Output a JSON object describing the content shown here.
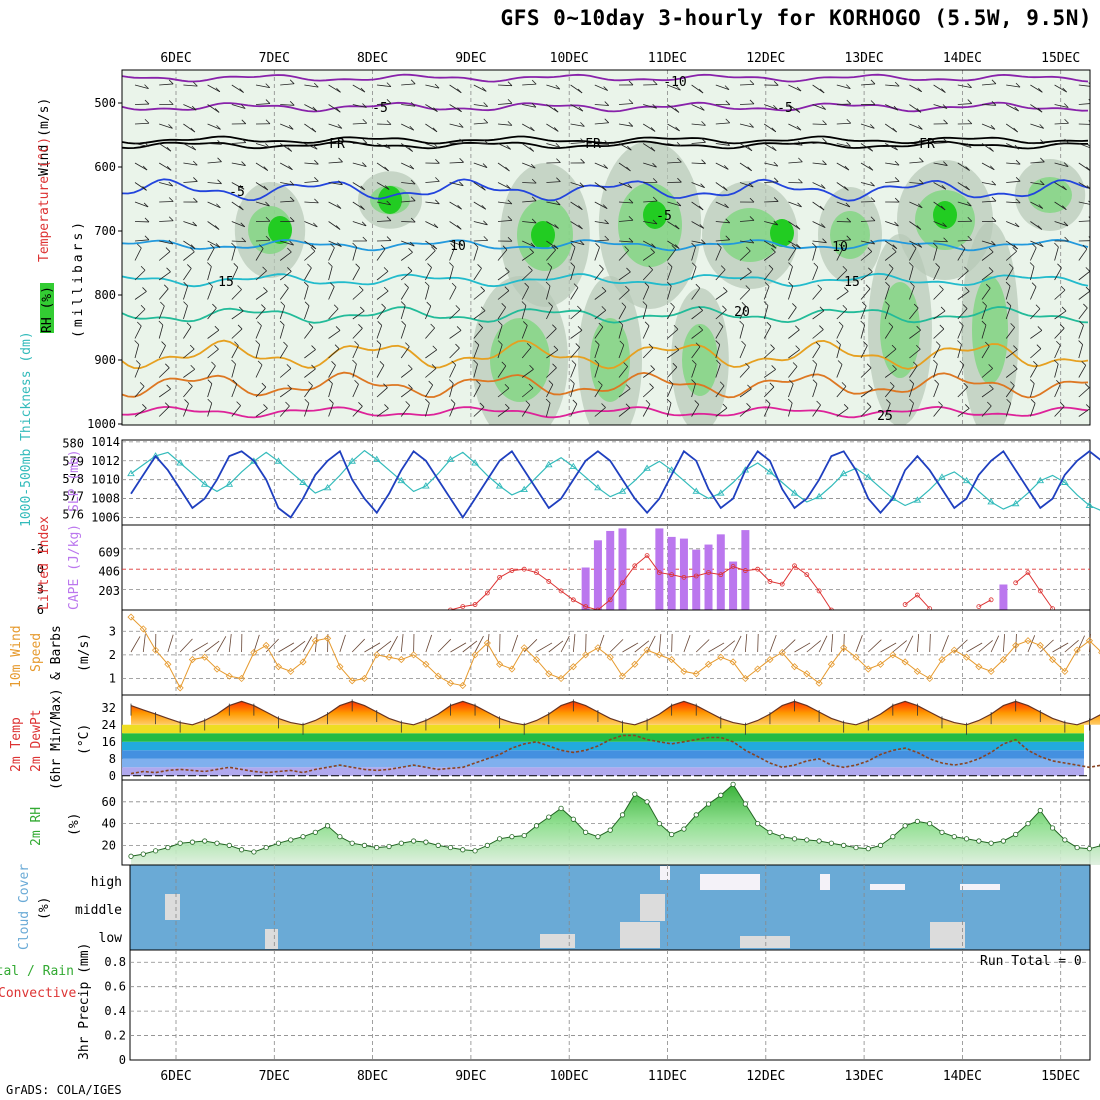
{
  "title": "GFS 0~10day 3-hourly for KORHOGO (5.5W, 9.5N)",
  "footer": "GrADS: COLA/IGES",
  "dates": [
    "6DEC",
    "7DEC",
    "8DEC",
    "9DEC",
    "10DEC",
    "11DEC",
    "12DEC",
    "13DEC",
    "14DEC",
    "15DEC"
  ],
  "colors": {
    "grid": "#999999",
    "fill_light": "#e6f2e6",
    "rh_green": "#33cc33",
    "rh_gray": "#b0bfb0",
    "slp": "#1f3fbf",
    "thickness": "#33bbbb",
    "cape": "#bb77ee",
    "lifted": "#dd3333",
    "wind": "#e69a2e",
    "rh2m": "#33aa33",
    "cloud": "#6aaad6",
    "cloud_clear": "#f4f2f8",
    "precip": "#999999"
  },
  "panels": {
    "upper": {
      "ylabels": [
        "Wind (m/s)",
        "Temperature (°C)",
        "(millibars)",
        "RH (%)"
      ],
      "yticks": [
        "500",
        "600",
        "700",
        "800",
        "900",
        "1000"
      ],
      "isotherm_labels": [
        "-10",
        "-5",
        "-5",
        "FR",
        "FR",
        "FR",
        "-5",
        "-5",
        "10",
        "10",
        "15",
        "15",
        "20",
        "25"
      ]
    },
    "slp": {
      "ylabel_left": "1000-500mb Thickness (dm)",
      "ylabel_right": "SLP (mb)",
      "yticks_left": [
        "580",
        "579",
        "578",
        "577",
        "576"
      ],
      "yticks_right": [
        "1014",
        "1012",
        "1010",
        "1008",
        "1006"
      ]
    },
    "cape": {
      "ylabel_left": "Lifted Index",
      "ylabel_right": "CAPE (J/kg)",
      "yticks_left": [
        "-3",
        "0",
        "3",
        "6"
      ],
      "yticks_right": [
        "609",
        "406",
        "203"
      ]
    },
    "wind": {
      "ylabel": [
        "10m Wind",
        "Speed",
        "& Barbs"
      ],
      "unit": "(m/s)",
      "yticks": [
        "3",
        "2",
        "1"
      ]
    },
    "temp": {
      "ylabel": [
        "2m Temp",
        "2m DewPt",
        "(6hr Min/Max)"
      ],
      "unit": "(°C)",
      "yticks": [
        "32",
        "24",
        "16",
        "8",
        "0"
      ]
    },
    "rh": {
      "ylabel": "2m RH",
      "unit": "(%)",
      "yticks": [
        "60",
        "40",
        "20"
      ]
    },
    "cloud": {
      "ylabel": "Cloud Cover",
      "unit": "(%)",
      "levels": [
        "high",
        "middle",
        "low"
      ]
    },
    "precip": {
      "ylabel_left": [
        "Total / Rain",
        "Convective"
      ],
      "ylabel": "3hr Precip (mm)",
      "yticks": [
        "0.8",
        "0.6",
        "0.4",
        "0.2",
        "0"
      ],
      "run_total": "Run Total = 0"
    }
  },
  "chart_data": [
    {
      "type": "line",
      "name": "slp_thickness",
      "x_step_hours": 3,
      "series": [
        {
          "name": "SLP (mb)",
          "values": [
            1008.5,
            1010.5,
            1012.5,
            1011,
            1009,
            1007,
            1008,
            1010,
            1012.5,
            1013,
            1012,
            1010,
            1007,
            1006,
            1008,
            1010.5,
            1012,
            1013,
            1010,
            1008,
            1006.5,
            1008.5,
            1011,
            1013,
            1012,
            1010,
            1008,
            1006,
            1008,
            1010,
            1012,
            1013,
            1011,
            1009,
            1007,
            1008,
            1010,
            1012,
            1013,
            1012,
            1010,
            1008,
            1006.5,
            1008,
            1010.5,
            1013,
            1012,
            1009,
            1007,
            1008,
            1011,
            1013,
            1012,
            1009,
            1007,
            1008,
            1010,
            1012.5,
            1013,
            1011,
            1008,
            1006.5,
            1008,
            1011,
            1012.5,
            1011,
            1009,
            1007,
            1008,
            1010.5,
            1012,
            1013,
            1011,
            1009,
            1007,
            1008,
            1010.5,
            1012,
            1013,
            1012,
            1010
          ]
        },
        {
          "name": "Thickness (dm)",
          "values": [
            578.3,
            578.8,
            579.3,
            579.5,
            578.9,
            578.3,
            577.7,
            577.3,
            577.7,
            578.4,
            579.0,
            579.5,
            579.0,
            578.4,
            577.8,
            577.2,
            577.5,
            578.2,
            579.0,
            579.6,
            579.1,
            578.5,
            577.9,
            577.3,
            577.6,
            578.3,
            579.1,
            579.5,
            578.9,
            578.2,
            577.6,
            577.1,
            577.4,
            578.1,
            578.8,
            579.2,
            578.7,
            578.1,
            577.5,
            577.0,
            577.3,
            577.9,
            578.6,
            579.0,
            578.5,
            577.9,
            577.3,
            576.9,
            577.2,
            577.8,
            578.5,
            578.9,
            578.4,
            577.8,
            577.2,
            576.7,
            577.0,
            577.6,
            578.3,
            578.6,
            578.1,
            577.5,
            576.9,
            576.5,
            576.8,
            577.4,
            578.1,
            578.4,
            577.9,
            577.3,
            576.7,
            576.3,
            576.6,
            577.2,
            577.9,
            578.2,
            577.8,
            577.1,
            576.5,
            576.2,
            576.0
          ]
        }
      ]
    },
    {
      "type": "bar",
      "name": "cape_lifted",
      "x_step_hours": 3,
      "series": [
        {
          "name": "CAPE (J/kg)",
          "bars": [
            [
              37,
              0.5
            ],
            [
              38,
              0.82
            ],
            [
              39,
              0.93
            ],
            [
              40,
              0.96
            ],
            [
              43,
              0.96
            ],
            [
              44,
              0.86
            ],
            [
              45,
              0.84
            ],
            [
              46,
              0.71
            ],
            [
              47,
              0.77
            ],
            [
              48,
              0.89
            ],
            [
              49,
              0.57
            ],
            [
              50,
              0.94
            ],
            [
              71,
              0.3
            ]
          ]
        },
        {
          "name": "Lifted Index",
          "values": [
            null,
            null,
            null,
            null,
            null,
            null,
            null,
            null,
            null,
            null,
            null,
            null,
            null,
            null,
            null,
            null,
            null,
            null,
            null,
            null,
            null,
            null,
            null,
            null,
            null,
            null,
            6,
            5.5,
            5.2,
            3.5,
            1.2,
            0.2,
            0.0,
            0.5,
            1.8,
            3.2,
            4.5,
            5.5,
            6,
            4.5,
            2,
            -0.5,
            -2,
            0.5,
            0.8,
            1.2,
            1.0,
            0.5,
            0.8,
            -0.4,
            0.2,
            0.0,
            1.8,
            2.2,
            -0.5,
            0.8,
            3.2,
            6,
            null,
            null,
            null,
            null,
            null,
            5.2,
            3.8,
            5.8,
            null,
            null,
            null,
            5.5,
            4.5,
            null,
            2.0,
            0.5,
            3.2,
            5.8,
            null,
            null,
            null,
            null,
            null
          ]
        }
      ]
    },
    {
      "type": "line",
      "name": "wind_10m",
      "x_step_hours": 3,
      "values": [
        3.6,
        3.1,
        2.2,
        1.6,
        0.6,
        1.8,
        1.9,
        1.4,
        1.1,
        1.0,
        2.1,
        2.4,
        1.5,
        1.3,
        1.7,
        2.6,
        2.7,
        1.5,
        0.9,
        1.0,
        2.0,
        1.9,
        1.8,
        2.0,
        1.6,
        1.1,
        0.8,
        0.7,
        2.0,
        2.5,
        1.6,
        1.4,
        2.3,
        1.8,
        1.2,
        1.0,
        1.5,
        2.0,
        2.3,
        1.9,
        1.1,
        1.6,
        2.2,
        2.0,
        1.8,
        1.3,
        1.2,
        1.6,
        1.9,
        1.7,
        1.0,
        1.4,
        1.8,
        2.1,
        1.5,
        1.2,
        0.8,
        1.6,
        2.3,
        1.9,
        1.4,
        1.6,
        2.0,
        1.7,
        1.3,
        1.0,
        1.8,
        2.2,
        1.9,
        1.5,
        1.3,
        1.8,
        2.4,
        2.6,
        2.4,
        1.8,
        1.3,
        2.2,
        2.6,
        2.1,
        1.8,
        0.9,
        0.8
      ]
    },
    {
      "type": "line",
      "name": "temp_dewpt",
      "x_step_hours": 3,
      "series": [
        {
          "name": "2m Temp",
          "values": [
            33,
            31,
            29,
            27,
            25,
            24,
            26,
            29,
            33,
            35,
            33,
            30,
            27,
            25,
            24,
            26,
            29,
            33,
            35,
            33,
            30,
            27,
            25,
            24,
            26,
            29,
            33,
            35,
            33,
            30,
            27,
            25,
            24,
            26,
            29,
            33,
            35,
            33,
            30,
            27,
            25,
            24,
            26,
            29,
            33,
            35,
            33,
            30,
            27,
            25,
            24,
            26,
            29,
            33,
            35,
            33,
            30,
            27,
            25,
            24,
            26,
            29,
            33,
            35,
            33,
            30,
            27,
            25,
            24,
            26,
            29,
            33,
            35,
            33,
            30,
            27,
            25,
            24,
            26,
            29,
            33
          ]
        },
        {
          "name": "2m DewPt",
          "values": [
            1,
            2,
            1.5,
            2.5,
            3,
            2.5,
            2,
            3,
            4,
            3,
            2,
            1.5,
            2,
            2.5,
            1.5,
            3,
            4,
            5,
            4,
            3,
            2.5,
            3,
            4,
            5,
            4,
            3,
            3.5,
            4,
            6,
            8,
            10,
            13,
            15,
            16,
            14,
            12,
            11,
            12,
            14,
            17,
            19,
            19,
            17,
            16,
            15,
            16,
            17,
            18,
            18,
            16,
            12,
            9,
            6,
            4,
            5,
            7,
            8,
            5,
            4,
            5,
            7,
            10,
            12,
            13,
            11,
            8,
            6,
            5,
            6,
            8,
            11,
            15,
            17,
            12,
            9,
            7,
            6,
            5,
            4,
            5,
            6
          ]
        }
      ]
    },
    {
      "type": "area",
      "name": "rh_2m",
      "x_step_hours": 3,
      "values": [
        10,
        12,
        15,
        18,
        22,
        23,
        24,
        22,
        20,
        16,
        14,
        18,
        22,
        25,
        28,
        32,
        38,
        28,
        22,
        20,
        18,
        19,
        22,
        24,
        23,
        20,
        18,
        16,
        15,
        20,
        26,
        28,
        29,
        38,
        46,
        54,
        44,
        32,
        28,
        34,
        48,
        67,
        60,
        40,
        30,
        35,
        48,
        58,
        66,
        76,
        58,
        40,
        32,
        28,
        26,
        25,
        24,
        22,
        20,
        18,
        17,
        20,
        28,
        38,
        42,
        40,
        32,
        28,
        26,
        24,
        22,
        24,
        30,
        40,
        52,
        36,
        25,
        18,
        17,
        20,
        24,
        30,
        34
      ]
    },
    {
      "type": "heatmap",
      "name": "cloud_cover",
      "levels": [
        "high",
        "middle",
        "low"
      ]
    },
    {
      "type": "bar",
      "name": "precip_3hr",
      "values": [],
      "ylim": [
        0,
        0.9
      ]
    }
  ]
}
